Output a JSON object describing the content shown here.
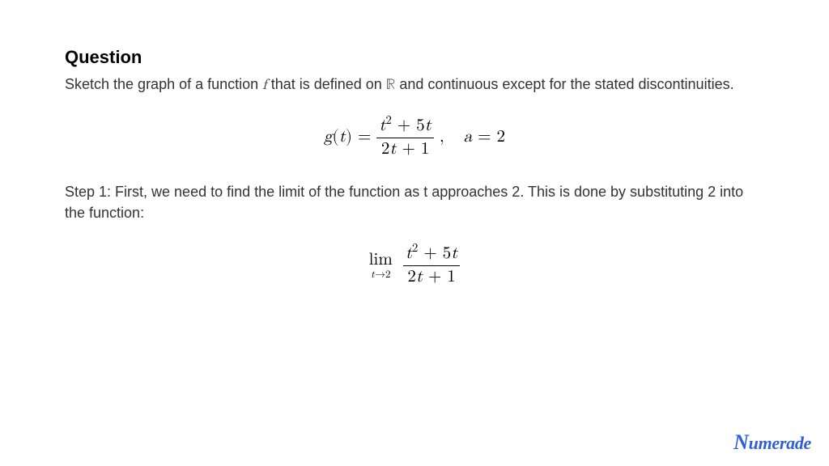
{
  "heading": "Question",
  "intro_part1": "Sketch the graph of a function ",
  "intro_f": "f",
  "intro_part2": " that is defined on ",
  "intro_R": "ℝ",
  "intro_part3": " and continuous except for the stated discontinuities.",
  "formula1": {
    "lhs_func": "g",
    "lhs_open": "(",
    "lhs_var": "t",
    "lhs_close": ") = ",
    "num_var1": "t",
    "num_exp": "2",
    "num_plus": " + 5",
    "num_var2": "t",
    "den_coef": "2",
    "den_var": "t",
    "den_plus": " + 1",
    "comma": " ,",
    "a_var": "a",
    "a_eq": " = 2"
  },
  "step1": "Step 1: First, we need to find the limit of the function as t approaches 2. This is done by substituting 2 into the function:",
  "formula2": {
    "lim_word": "lim",
    "lim_var": "t",
    "lim_arrow": "→2",
    "num_var1": "t",
    "num_exp": "2",
    "num_plus": " + 5",
    "num_var2": "t",
    "den_coef": "2",
    "den_var": "t",
    "den_plus": " + 1"
  },
  "logo": "umerade",
  "logo_leading": "N",
  "colors": {
    "background": "#ffffff",
    "text": "#333333",
    "heading": "#000000",
    "math": "#000000",
    "logo": "#2e5fd9"
  },
  "typography": {
    "heading_fontsize": 22,
    "body_fontsize": 18,
    "formula_fontsize": 21,
    "logo_fontsize": 22
  }
}
